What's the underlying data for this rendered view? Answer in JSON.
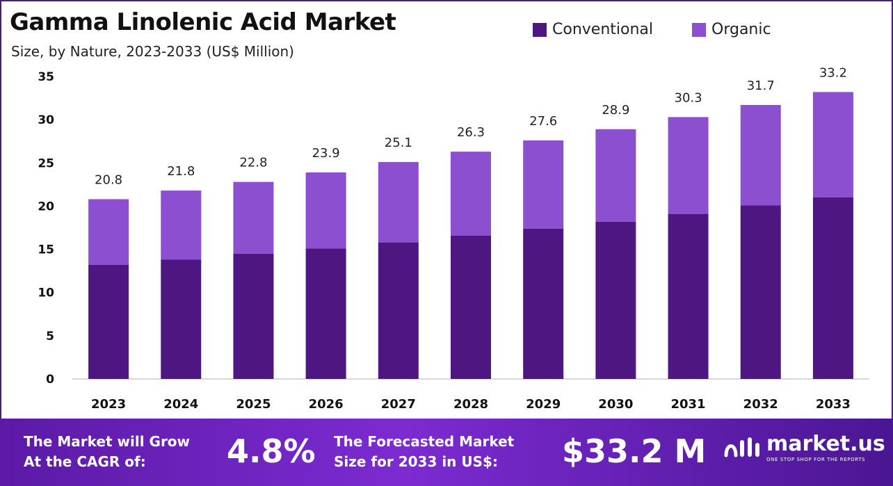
{
  "title": "Gamma Linolenic Acid Market",
  "subtitle": "Size, by Nature, 2023-2033 (US$ Million)",
  "colors": {
    "conventional": "#4e1680",
    "organic": "#8b4fcf",
    "frame": "#4a1a82"
  },
  "chart_data": {
    "type": "bar",
    "stacked": true,
    "categories": [
      "2023",
      "2024",
      "2025",
      "2026",
      "2027",
      "2028",
      "2029",
      "2030",
      "2031",
      "2032",
      "2033"
    ],
    "series": [
      {
        "name": "Conventional",
        "values": [
          13.2,
          13.8,
          14.5,
          15.1,
          15.8,
          16.6,
          17.4,
          18.2,
          19.1,
          20.1,
          21.0
        ]
      },
      {
        "name": "Organic",
        "values": [
          7.6,
          8.0,
          8.3,
          8.8,
          9.3,
          9.7,
          10.2,
          10.7,
          11.2,
          11.6,
          12.2
        ]
      }
    ],
    "totals": [
      "20.8",
      "21.8",
      "22.8",
      "23.9",
      "25.1",
      "26.3",
      "27.6",
      "28.9",
      "30.3",
      "31.7",
      "33.2"
    ],
    "yticks": [
      "0",
      "5",
      "10",
      "15",
      "20",
      "25",
      "30",
      "35"
    ],
    "ylim": [
      0,
      35
    ],
    "legend_position": "top-right",
    "grid": false
  },
  "footer": {
    "cagr_label": "The Market will Grow\nAt the CAGR of:",
    "cagr_value": "4.8%",
    "forecast_label": "The Forecasted Market\nSize for 2033 in US$:",
    "forecast_value": "$33.2 M",
    "brand_name": "market.us",
    "brand_tagline": "ONE STOP SHOP FOR THE REPORTS",
    "brand_icon": "market-us-logo-icon"
  }
}
